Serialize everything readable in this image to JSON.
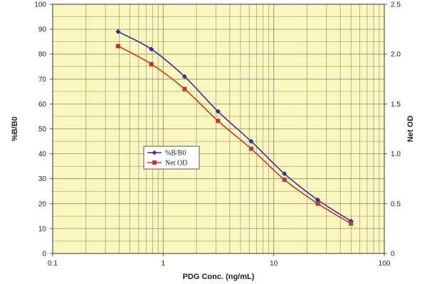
{
  "chart_data": {
    "type": "line",
    "title": "",
    "xlabel": "PDG Conc. (ng/mL)",
    "ylabel_left": "%B/B0",
    "ylabel_right": "Net OD",
    "x_scale": "log",
    "xlim": [
      0.1,
      100
    ],
    "ylim_left": [
      0,
      100
    ],
    "ylim_right": [
      0,
      2.5
    ],
    "grid": true,
    "legend_position": "center-left",
    "x_tick_labels": [
      "0.1",
      "1",
      "10",
      "100"
    ],
    "y_left_tick_labels": [
      "0",
      "10",
      "20",
      "30",
      "40",
      "50",
      "60",
      "70",
      "80",
      "90",
      "100"
    ],
    "y_right_tick_labels": [
      "0",
      "0.5",
      "1.0",
      "1.5",
      "2.0",
      "2.5"
    ],
    "x": [
      0.391,
      0.781,
      1.56,
      3.13,
      6.25,
      12.5,
      25,
      50
    ],
    "series": [
      {
        "name": "%B/B0",
        "axis": "left",
        "color": "#3a2f9a",
        "marker": "diamond",
        "values": [
          89,
          82,
          71,
          57,
          45,
          32,
          21.5,
          13
        ]
      },
      {
        "name": "Net OD",
        "axis": "right",
        "color": "#c0392b",
        "marker": "square",
        "values": [
          2.08,
          1.9,
          1.65,
          1.33,
          1.05,
          0.74,
          0.5,
          0.3
        ]
      }
    ],
    "colors": {
      "plot_background": "#fbf5be",
      "grid": "#8a8a7a",
      "frame": "#333333"
    }
  }
}
